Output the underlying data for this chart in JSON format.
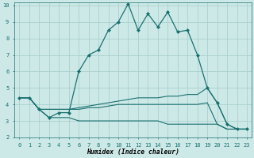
{
  "xlabel": "Humidex (Indice chaleur)",
  "xlim": [
    -0.5,
    23.5
  ],
  "ylim": [
    2,
    10.2
  ],
  "yticks": [
    2,
    3,
    4,
    5,
    6,
    7,
    8,
    9,
    10
  ],
  "xticks": [
    0,
    1,
    2,
    3,
    4,
    5,
    6,
    7,
    8,
    9,
    10,
    11,
    12,
    13,
    14,
    15,
    16,
    17,
    18,
    19,
    20,
    21,
    22,
    23
  ],
  "background_color": "#cce9e7",
  "grid_color": "#aad0cd",
  "line_color": "#1a7070",
  "lines": [
    {
      "x": [
        0,
        1,
        2,
        3,
        4,
        5,
        6,
        7,
        8,
        9,
        10,
        11,
        12,
        13,
        14,
        15,
        16,
        17,
        18,
        19,
        20,
        21,
        22,
        23
      ],
      "y": [
        4.4,
        4.4,
        3.7,
        3.2,
        3.5,
        3.5,
        6.0,
        7.0,
        7.3,
        8.5,
        9.0,
        10.1,
        8.5,
        9.5,
        8.7,
        9.6,
        8.4,
        8.5,
        7.0,
        5.0,
        4.1,
        2.8,
        2.5,
        2.5
      ],
      "marker": true
    },
    {
      "x": [
        0,
        1,
        2,
        3,
        4,
        5,
        6,
        7,
        8,
        9,
        10,
        11,
        12,
        13,
        14,
        15,
        16,
        17,
        18,
        19,
        20,
        21,
        22,
        23
      ],
      "y": [
        4.4,
        4.4,
        3.7,
        3.7,
        3.7,
        3.7,
        3.8,
        3.9,
        4.0,
        4.1,
        4.2,
        4.3,
        4.4,
        4.4,
        4.4,
        4.5,
        4.5,
        4.6,
        4.6,
        5.0,
        4.1,
        2.8,
        2.5,
        2.5
      ],
      "marker": false
    },
    {
      "x": [
        0,
        1,
        2,
        3,
        4,
        5,
        6,
        7,
        8,
        9,
        10,
        11,
        12,
        13,
        14,
        15,
        16,
        17,
        18,
        19,
        20,
        21,
        22,
        23
      ],
      "y": [
        4.4,
        4.4,
        3.7,
        3.7,
        3.7,
        3.7,
        3.7,
        3.8,
        3.8,
        3.9,
        4.0,
        4.0,
        4.0,
        4.0,
        4.0,
        4.0,
        4.0,
        4.0,
        4.0,
        4.1,
        2.8,
        2.5,
        2.5,
        2.5
      ],
      "marker": false
    },
    {
      "x": [
        0,
        1,
        2,
        3,
        4,
        5,
        6,
        7,
        8,
        9,
        10,
        11,
        12,
        13,
        14,
        15,
        16,
        17,
        18,
        19,
        20,
        21,
        22,
        23
      ],
      "y": [
        4.4,
        4.4,
        3.7,
        3.2,
        3.2,
        3.2,
        3.0,
        3.0,
        3.0,
        3.0,
        3.0,
        3.0,
        3.0,
        3.0,
        3.0,
        2.8,
        2.8,
        2.8,
        2.8,
        2.8,
        2.8,
        2.5,
        2.5,
        2.5
      ],
      "marker": false
    }
  ]
}
